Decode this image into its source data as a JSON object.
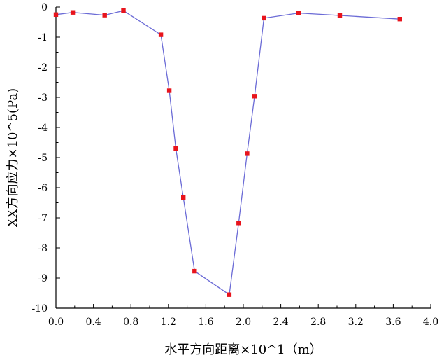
{
  "chart_data": {
    "type": "line",
    "xlabel": "水平方向距离×10^1（m）",
    "ylabel": "XX方向应力×10^5(Pa)",
    "xlim": [
      0.0,
      4.0
    ],
    "ylim": [
      -10,
      0
    ],
    "x_ticks": [
      "0.0",
      "0.4",
      "0.8",
      "1.2",
      "1.6",
      "2.0",
      "2.4",
      "2.8",
      "3.2",
      "3.6",
      "4.0"
    ],
    "y_ticks": [
      "0",
      "-1",
      "-2",
      "-3",
      "-4",
      "-5",
      "-6",
      "-7",
      "-8",
      "-9",
      "-10"
    ],
    "grid": false,
    "line_color": "#6b6bd6",
    "marker_color": "#e8141c",
    "series": [
      {
        "x": [
          0.0,
          0.18,
          0.52,
          0.72,
          1.12,
          1.21,
          1.28,
          1.36,
          1.48,
          1.85,
          1.95,
          2.04,
          2.12,
          2.22,
          2.59,
          3.03,
          3.67
        ],
        "y": [
          -0.25,
          -0.18,
          -0.27,
          -0.12,
          -0.92,
          -2.78,
          -4.7,
          -6.33,
          -8.77,
          -9.55,
          -7.17,
          -4.87,
          -2.96,
          -0.37,
          -0.2,
          -0.28,
          -0.4
        ]
      }
    ]
  }
}
